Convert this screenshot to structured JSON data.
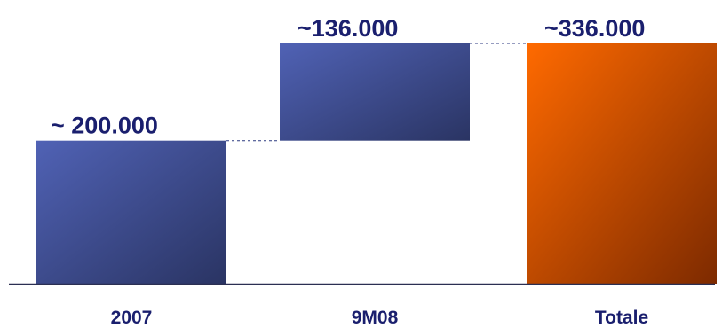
{
  "chart_data": {
    "type": "bar",
    "subtype": "waterfall",
    "categories": [
      "2007",
      "9M08",
      "Totale"
    ],
    "values": [
      200000,
      136000,
      336000
    ],
    "bases": [
      0,
      200000,
      0
    ],
    "value_labels": [
      "~ 200.000",
      "~136.000",
      "~336.000"
    ],
    "title": "",
    "xlabel": "",
    "ylabel": "",
    "ylim": [
      0,
      336000
    ],
    "grid": false,
    "legend": "none",
    "connectors": true
  },
  "colors": {
    "blue_light": "#5062b5",
    "blue_dark": "#2a3463",
    "orange_light": "#ff6a00",
    "orange_dark": "#7d2a00",
    "label_text": "#1a1f6e",
    "axis": "#2b2f52",
    "connector": "#2d3a80"
  }
}
